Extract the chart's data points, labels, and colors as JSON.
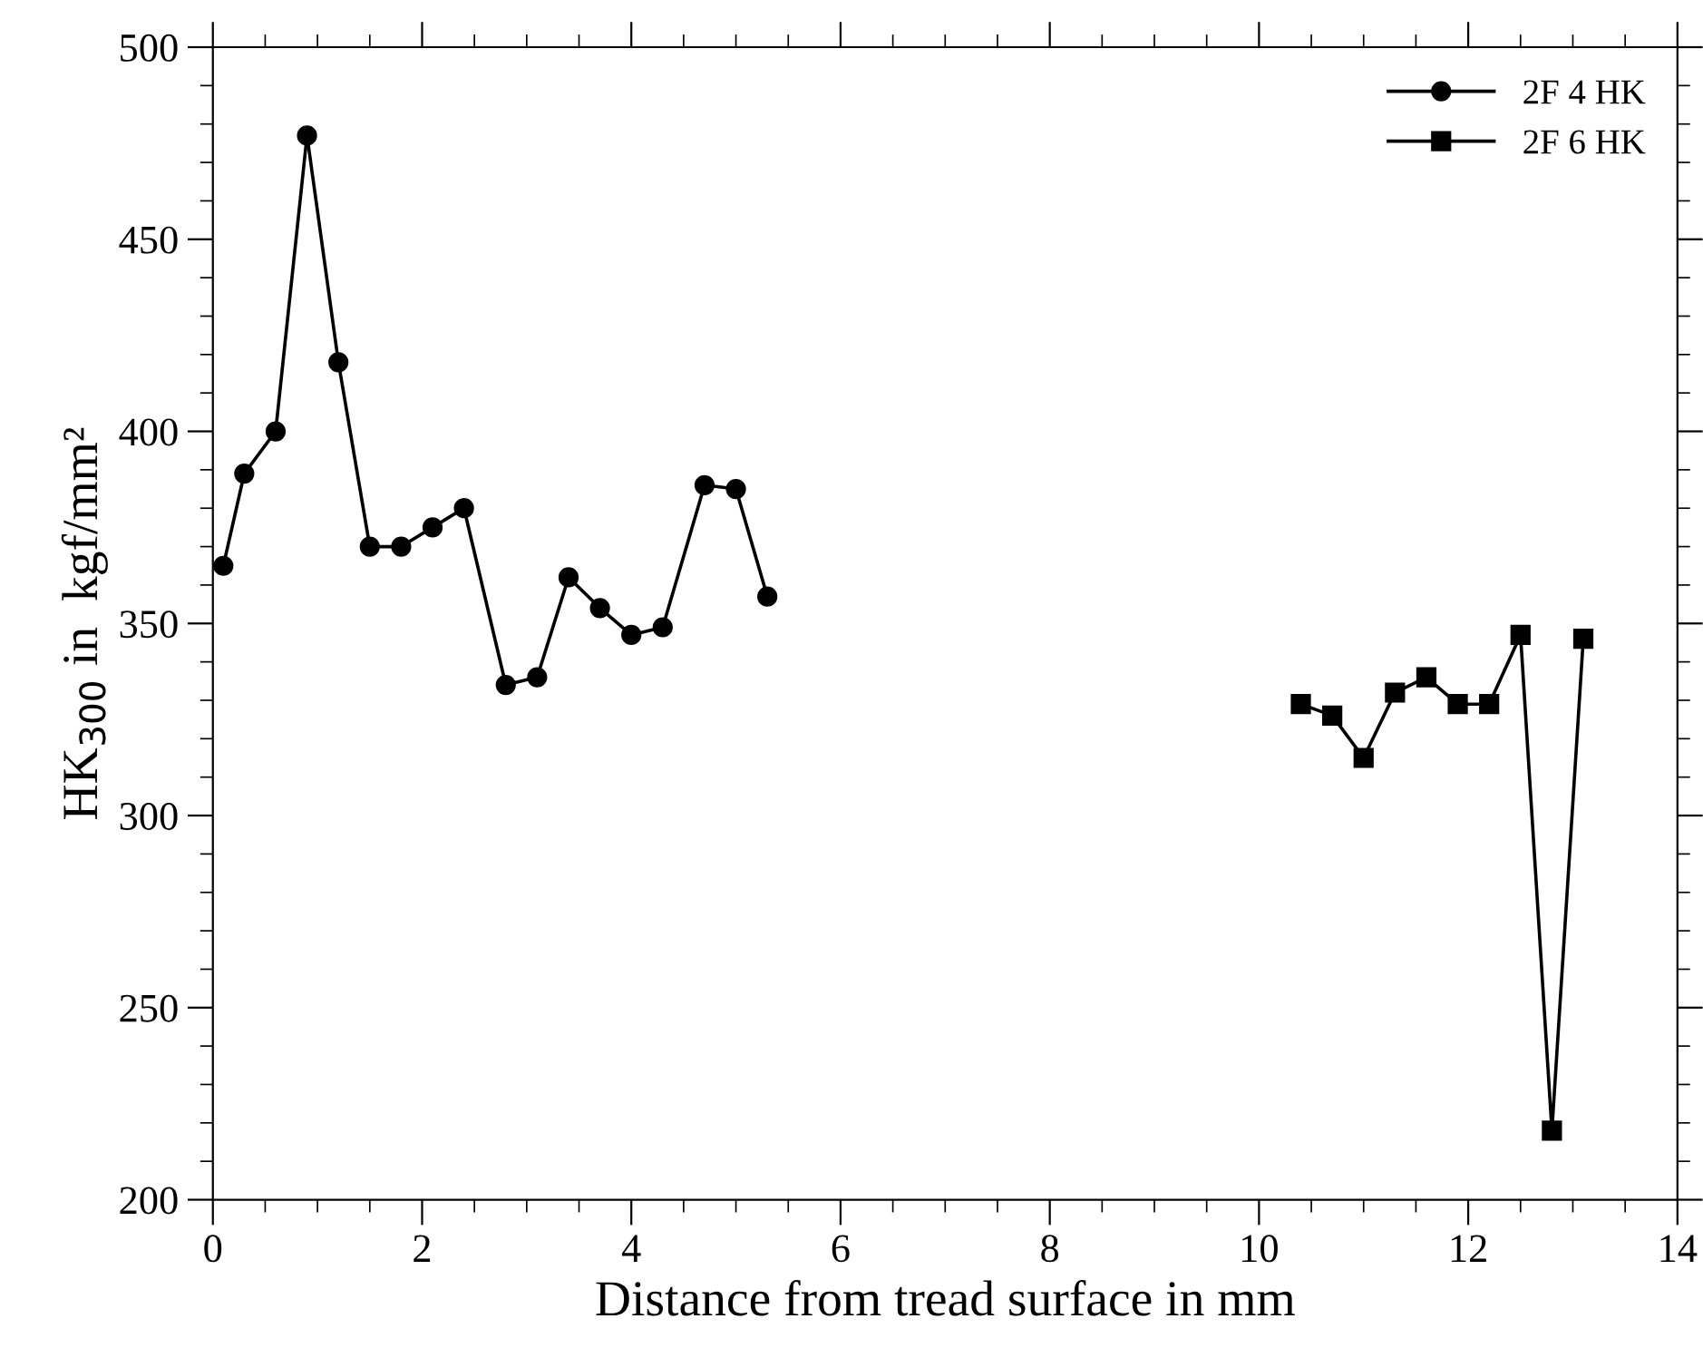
{
  "chart_data": {
    "type": "line",
    "xlabel": "Distance from tread surface in mm",
    "ylabel": "HK$_{300}$ in  kgf/mm²",
    "xlim": [
      0,
      14
    ],
    "xticks": [
      0,
      2,
      4,
      6,
      8,
      10,
      12,
      14
    ],
    "ylim": [
      200,
      500
    ],
    "yticks": [
      200,
      250,
      300,
      350,
      400,
      450,
      500
    ],
    "grid": false,
    "legend": "top right",
    "line_style": "solid",
    "series": [
      {
        "name": "2F 4 HK",
        "color": "#000000",
        "marker": "circle",
        "x": [
          0.1,
          0.3,
          0.6,
          0.9,
          1.2,
          1.5,
          1.8,
          2.1,
          2.4,
          2.8,
          3.1,
          3.4,
          3.7,
          4.0,
          4.3,
          4.7,
          5.0,
          5.3
        ],
        "values": [
          365,
          389,
          400,
          477,
          418,
          370,
          370,
          375,
          380,
          334,
          336,
          362,
          354,
          347,
          349,
          386,
          385,
          357
        ]
      },
      {
        "name": "2F 6 HK",
        "color": "#000000",
        "marker": "square",
        "x": [
          10.4,
          10.7,
          11.0,
          11.3,
          11.6,
          11.9,
          12.2,
          12.5,
          12.8,
          13.1
        ],
        "values": [
          329,
          326,
          315,
          332,
          336,
          329,
          329,
          347,
          218,
          346
        ]
      }
    ]
  }
}
